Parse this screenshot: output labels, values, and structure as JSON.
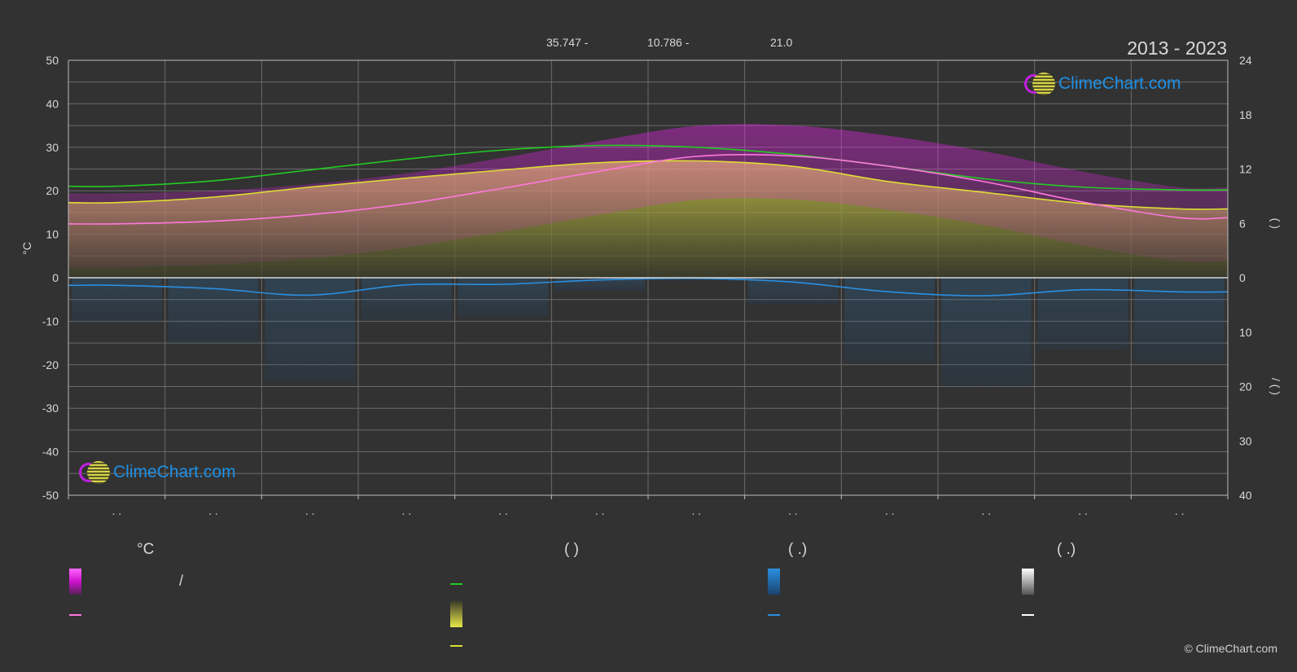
{
  "header": {
    "stat_1": "35.747 -",
    "stat_2": "10.786 -",
    "stat_3": "21.0",
    "period": "2013 - 2023"
  },
  "brand": {
    "logo_text": "ClimeChart.com",
    "copyright": "© ClimeChart.com"
  },
  "colors": {
    "daylight": "#22cc22",
    "sunshine": "#dddd33",
    "temp_mean": "#ff77dd",
    "temp_band": "#dd22dd",
    "rain_line": "#2a8fe0",
    "snow_line": "#ffffff"
  },
  "chart_data": {
    "type": "area",
    "x_months": 12,
    "x_tick_labels": [
      ". .",
      ". .",
      ". .",
      ". .",
      ". .",
      ". .",
      ". .",
      ". .",
      ". .",
      ". .",
      ". .",
      ". ."
    ],
    "left_axis": {
      "label": "°C",
      "ylim": [
        -50,
        50
      ],
      "ticks": [
        50,
        40,
        30,
        20,
        10,
        0,
        -10,
        -20,
        -30,
        -40,
        -50
      ]
    },
    "right_axis_top": {
      "label": "(   )",
      "ylim": [
        0,
        24
      ],
      "ticks": [
        24,
        18,
        12,
        6,
        0
      ]
    },
    "right_axis_bottom": {
      "label": "/ (   )",
      "ylim": [
        0,
        40
      ],
      "ticks": [
        0,
        10,
        20,
        30,
        40
      ]
    },
    "grid": true,
    "series": [
      {
        "axis": "right_top",
        "values": [
          10.1,
          10.7,
          11.9,
          13.1,
          14.1,
          14.6,
          14.4,
          13.6,
          12.3,
          10.9,
          10.0,
          9.7
        ]
      },
      {
        "axis": "right_top",
        "values": [
          8.3,
          8.9,
          10.0,
          11.0,
          11.9,
          12.7,
          12.9,
          12.3,
          10.6,
          9.4,
          8.2,
          7.6
        ]
      },
      {
        "axis": "left",
        "values": [
          12.4,
          13.0,
          14.5,
          17.0,
          20.6,
          24.5,
          27.9,
          28.0,
          25.6,
          22.0,
          17.4,
          13.8
        ]
      },
      {
        "axis": "right_bottom",
        "values": [
          1.4,
          2.0,
          3.2,
          1.3,
          1.2,
          0.4,
          0.1,
          0.8,
          2.6,
          3.3,
          2.2,
          2.6
        ]
      }
    ]
  },
  "legend": {
    "col1_header": "°C",
    "col1_row1": "/",
    "col1_row2": "",
    "col2_header": "(          )",
    "col2_row1": "",
    "col2_row2": "",
    "col2_row3": "",
    "col3_header": "(   .)",
    "col3_row1": "",
    "col3_row2": "",
    "col4_header": "(   .)",
    "col4_row1": "",
    "col4_row2": ""
  }
}
